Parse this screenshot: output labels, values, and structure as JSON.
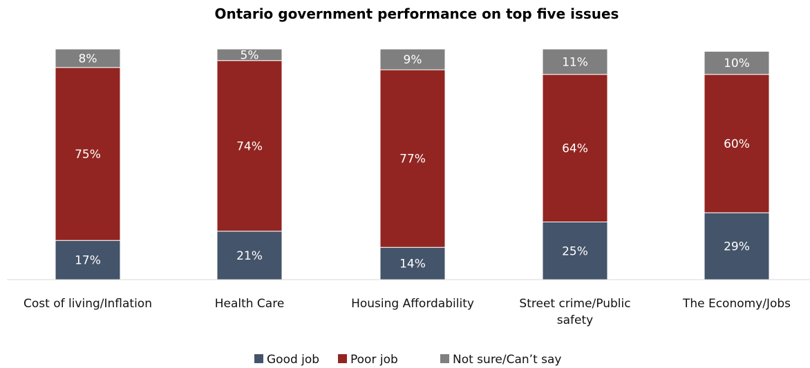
{
  "chart_data": {
    "type": "bar",
    "stacked": true,
    "title": "Ontario government performance on top five issues",
    "xlabel": "",
    "ylabel": "",
    "ylim": [
      0,
      100
    ],
    "grid": false,
    "legend_position": "bottom",
    "categories": [
      "Cost of living/Inflation",
      "Health Care",
      "Housing Affordability",
      "Street crime/Public safety",
      "The Economy/Jobs"
    ],
    "category_lines": [
      [
        "Cost of living/Inflation"
      ],
      [
        "Health Care"
      ],
      [
        "Housing Affordability"
      ],
      [
        "Street crime/Public",
        "safety"
      ],
      [
        "The Economy/Jobs"
      ]
    ],
    "series": [
      {
        "name": "Good job",
        "color": "#44546a",
        "values": [
          17,
          21,
          14,
          25,
          29
        ],
        "labels": [
          "17%",
          "21%",
          "14%",
          "25%",
          "29%"
        ]
      },
      {
        "name": "Poor job",
        "color": "#922521",
        "values": [
          75,
          74,
          77,
          64,
          60
        ],
        "labels": [
          "75%",
          "74%",
          "77%",
          "64%",
          "60%"
        ]
      },
      {
        "name": "Not sure/Can’t say",
        "color": "#7f7f7f",
        "values": [
          8,
          5,
          9,
          11,
          10
        ],
        "labels": [
          "8%",
          "5%",
          "9%",
          "11%",
          "10%"
        ]
      }
    ]
  }
}
